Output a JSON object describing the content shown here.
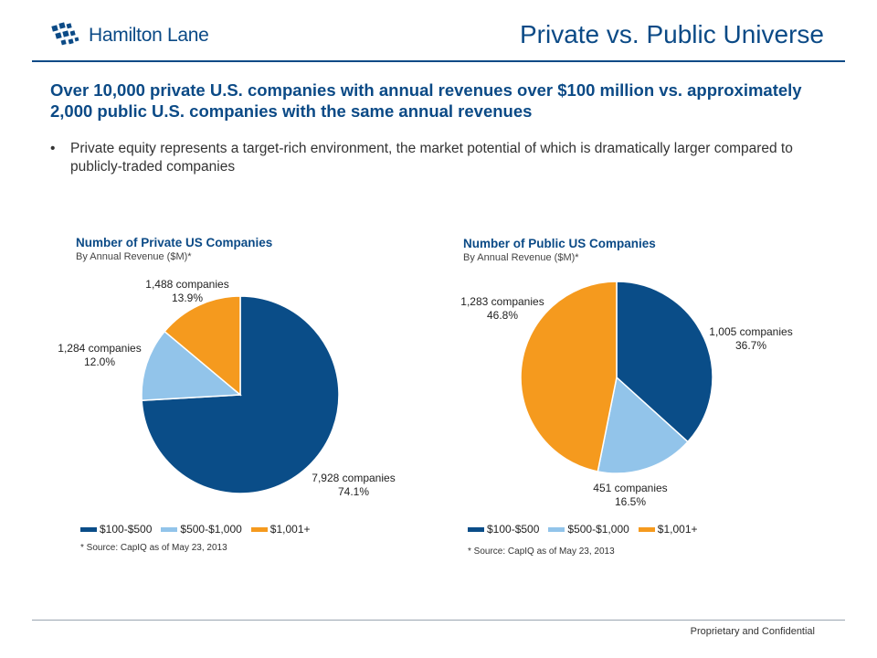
{
  "header": {
    "logo_text": "Hamilton Lane",
    "slide_title": "Private vs. Public Universe"
  },
  "headline": "Over 10,000 private U.S. companies with annual revenues over $100 million vs. approximately 2,000 public U.S. companies with the same annual revenues",
  "bullet": "Private equity represents a target-rich environment, the market potential of which is dramatically larger compared to publicly-traded companies",
  "colors": {
    "brand": "#0b4a86",
    "dark_blue": "#0a4d88",
    "light_blue": "#92c4ea",
    "orange": "#f59a1e"
  },
  "chart_data": [
    {
      "type": "pie",
      "title": "Number of Private US Companies",
      "subtitle": "By Annual Revenue ($M)*",
      "slices": [
        {
          "name": "$100-$500",
          "value": 7928,
          "percent": "74.1%",
          "count_label": "7,928 companies",
          "color": "#0a4d88"
        },
        {
          "name": "$500-$1,000",
          "value": 1284,
          "percent": "12.0%",
          "count_label": "1,284 companies",
          "color": "#92c4ea"
        },
        {
          "name": "$1,001+",
          "value": 1488,
          "percent": "13.9%",
          "count_label": "1,488 companies",
          "color": "#f59a1e"
        }
      ],
      "legend": [
        "$100-$500",
        "$500-$1,000",
        "$1,001+"
      ],
      "legend_position": "bottom",
      "source": "* Source: CapIQ as of May 23, 2013"
    },
    {
      "type": "pie",
      "title": "Number of Public US Companies",
      "subtitle": "By Annual Revenue ($M)*",
      "slices": [
        {
          "name": "$100-$500",
          "value": 1005,
          "percent": "36.7%",
          "count_label": "1,005 companies",
          "color": "#0a4d88"
        },
        {
          "name": "$500-$1,000",
          "value": 451,
          "percent": "16.5%",
          "count_label": "451 companies",
          "color": "#92c4ea"
        },
        {
          "name": "$1,001+",
          "value": 1283,
          "percent": "46.8%",
          "count_label": "1,283 companies",
          "color": "#f59a1e"
        }
      ],
      "legend": [
        "$100-$500",
        "$500-$1,000",
        "$1,001+"
      ],
      "legend_position": "bottom",
      "source": "* Source: CapIQ as of May 23, 2013"
    }
  ],
  "footer": "Proprietary and Confidential"
}
